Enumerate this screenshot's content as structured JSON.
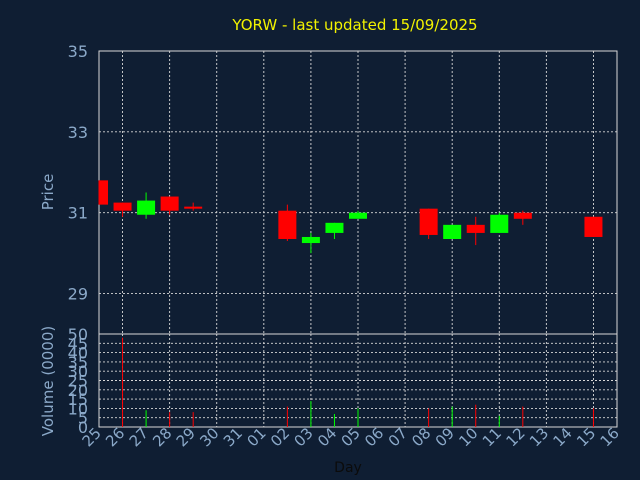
{
  "chart_data": {
    "type": "candlestick",
    "title": "YORW - last updated 15/09/2025",
    "xlabel": "Day",
    "price_ylabel": "Price",
    "volume_ylabel": "Volume (0000)",
    "price_ylim": [
      28,
      35
    ],
    "price_ticks": [
      "29",
      "31",
      "33",
      "35"
    ],
    "volume_ylim": [
      0,
      50
    ],
    "volume_ticks": [
      "0",
      "5",
      "10",
      "15",
      "20",
      "25",
      "30",
      "35",
      "40",
      "45",
      "50"
    ],
    "x_ticks": [
      "25",
      "26",
      "27",
      "28",
      "29",
      "30",
      "31",
      "01",
      "02",
      "03",
      "04",
      "05",
      "06",
      "07",
      "08",
      "09",
      "10",
      "11",
      "12",
      "13",
      "14",
      "15",
      "16"
    ],
    "up_color": "#00ff00",
    "down_color": "#ff0000",
    "grid": true,
    "candles": [
      {
        "day": "25",
        "open": 31.8,
        "high": 31.8,
        "low": 31.2,
        "close": 31.2,
        "volume": 0
      },
      {
        "day": "26",
        "open": 31.25,
        "high": 31.25,
        "low": 30.9,
        "close": 31.05,
        "volume": 48
      },
      {
        "day": "27",
        "open": 30.95,
        "high": 31.5,
        "low": 30.85,
        "close": 31.3,
        "volume": 9
      },
      {
        "day": "28",
        "open": 31.4,
        "high": 31.4,
        "low": 30.95,
        "close": 31.05,
        "volume": 8
      },
      {
        "day": "29",
        "open": 31.15,
        "high": 31.25,
        "low": 31.05,
        "close": 31.1,
        "volume": 8
      },
      {
        "day": "02",
        "open": 31.05,
        "high": 31.2,
        "low": 30.3,
        "close": 30.35,
        "volume": 11
      },
      {
        "day": "03",
        "open": 30.25,
        "high": 30.5,
        "low": 30.0,
        "close": 30.4,
        "volume": 14
      },
      {
        "day": "04",
        "open": 30.5,
        "high": 30.75,
        "low": 30.35,
        "close": 30.75,
        "volume": 7
      },
      {
        "day": "05",
        "open": 30.85,
        "high": 31.05,
        "low": 30.85,
        "close": 31.0,
        "volume": 10
      },
      {
        "day": "08",
        "open": 31.1,
        "high": 31.1,
        "low": 30.35,
        "close": 30.45,
        "volume": 10
      },
      {
        "day": "09",
        "open": 30.35,
        "high": 30.7,
        "low": 30.35,
        "close": 30.7,
        "volume": 11
      },
      {
        "day": "10",
        "open": 30.7,
        "high": 30.9,
        "low": 30.2,
        "close": 30.5,
        "volume": 12
      },
      {
        "day": "11",
        "open": 30.5,
        "high": 31.0,
        "low": 30.5,
        "close": 30.95,
        "volume": 6
      },
      {
        "day": "12",
        "open": 31.0,
        "high": 31.05,
        "low": 30.7,
        "close": 30.85,
        "volume": 11
      },
      {
        "day": "15",
        "open": 30.9,
        "high": 30.9,
        "low": 30.4,
        "close": 30.4,
        "volume": 10
      }
    ]
  }
}
